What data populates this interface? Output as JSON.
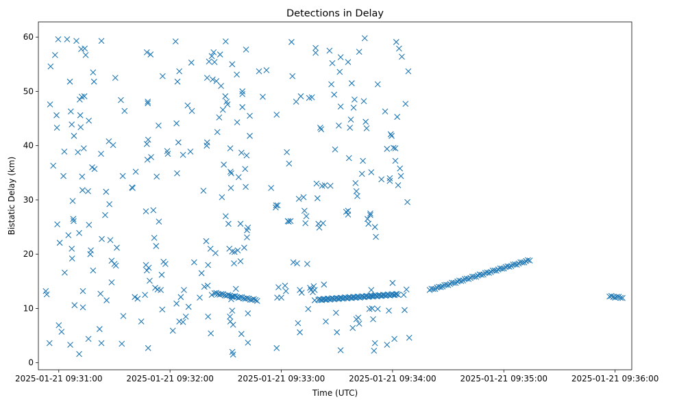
{
  "chart_data": {
    "type": "scatter",
    "title": "Detections in Delay",
    "xlabel": "Time (UTC)",
    "ylabel": "Bistatic Delay (km)",
    "marker": "x",
    "color": "#1f77b4",
    "grid": false,
    "xlim_seconds_after_09_30_00": [
      49,
      369
    ],
    "ylim": [
      -1.3,
      62.8
    ],
    "x_ticks": [
      {
        "value_s": 60,
        "label": "2025-01-21 09:31:00"
      },
      {
        "value_s": 120,
        "label": "2025-01-21 09:32:00"
      },
      {
        "value_s": 180,
        "label": "2025-01-21 09:33:00"
      },
      {
        "value_s": 240,
        "label": "2025-01-21 09:34:00"
      },
      {
        "value_s": 300,
        "label": "2025-01-21 09:35:00"
      },
      {
        "value_s": 360,
        "label": "2025-01-21 09:36:00"
      }
    ],
    "y_ticks": [
      0,
      10,
      20,
      30,
      40,
      50,
      60
    ],
    "track_segments": [
      {
        "x_start": 144,
        "y_start": 12.8,
        "x_end": 167,
        "y_end": 11.5,
        "n": 26
      },
      {
        "x_start": 200,
        "y_start": 11.6,
        "x_end": 243,
        "y_end": 12.6,
        "n": 70
      },
      {
        "x_start": 260,
        "y_start": 13.4,
        "x_end": 314,
        "y_end": 18.9,
        "n": 55
      },
      {
        "x_start": 357,
        "y_start": 12.2,
        "x_end": 364,
        "y_end": 12.0,
        "n": 8
      }
    ],
    "points": [
      [
        53,
        13.2
      ],
      [
        53.5,
        12.6
      ],
      [
        55,
        3.6
      ],
      [
        55.3,
        47.6
      ],
      [
        55.6,
        54.6
      ],
      [
        57,
        36.3
      ],
      [
        58,
        56.7
      ],
      [
        58.8,
        45.6
      ],
      [
        59,
        43.3
      ],
      [
        59.2,
        25.5
      ],
      [
        59.7,
        59.6
      ],
      [
        60,
        6.9
      ],
      [
        60.5,
        22.1
      ],
      [
        61.5,
        5.7
      ],
      [
        62.5,
        34.4
      ],
      [
        63,
        38.9
      ],
      [
        63.2,
        16.6
      ],
      [
        64.5,
        59.6
      ],
      [
        65.2,
        23.5
      ],
      [
        66,
        51.8
      ],
      [
        66.2,
        3.3
      ],
      [
        66.5,
        46.3
      ],
      [
        67,
        43.9
      ],
      [
        67,
        21.0
      ],
      [
        67.2,
        19.2
      ],
      [
        67.5,
        29.8
      ],
      [
        67.8,
        26.5
      ],
      [
        68,
        26.1
      ],
      [
        68.2,
        41.8
      ],
      [
        68.5,
        10.6
      ],
      [
        69.5,
        59.3
      ],
      [
        70.3,
        38.8
      ],
      [
        71,
        23.9
      ],
      [
        71,
        1.6
      ],
      [
        71.3,
        48.5
      ],
      [
        71.6,
        45.6
      ],
      [
        71.8,
        43.4
      ],
      [
        72.1,
        57.8
      ],
      [
        72.4,
        49.0
      ],
      [
        72.6,
        34.3
      ],
      [
        72.8,
        31.8
      ],
      [
        73,
        13.2
      ],
      [
        73,
        10.2
      ],
      [
        73.5,
        39.5
      ],
      [
        73.8,
        49.1
      ],
      [
        74,
        57.9
      ],
      [
        74.5,
        56.7
      ],
      [
        75.8,
        31.6
      ],
      [
        76,
        4.4
      ],
      [
        76.2,
        44.6
      ],
      [
        76.3,
        25.4
      ],
      [
        77,
        20.0
      ],
      [
        77.3,
        20.7
      ],
      [
        78,
        36.0
      ],
      [
        78.5,
        53.5
      ],
      [
        78.5,
        17.0
      ],
      [
        79,
        51.8
      ],
      [
        79.3,
        35.7
      ],
      [
        82,
        6.2
      ],
      [
        82.5,
        12.7
      ],
      [
        82.8,
        38.5
      ],
      [
        83,
        59.3
      ],
      [
        83,
        3.6
      ],
      [
        83.2,
        22.8
      ],
      [
        85,
        27.2
      ],
      [
        85.5,
        31.5
      ],
      [
        85.8,
        11.5
      ],
      [
        87,
        40.8
      ],
      [
        87.3,
        29.2
      ],
      [
        87.8,
        22.6
      ],
      [
        88.5,
        18.8
      ],
      [
        88.5,
        14.8
      ],
      [
        89.3,
        40.1
      ],
      [
        90,
        18.2
      ],
      [
        90.5,
        52.5
      ],
      [
        90.8,
        17.9
      ],
      [
        91.3,
        21.2
      ],
      [
        93.5,
        48.4
      ],
      [
        94,
        3.5
      ],
      [
        94.5,
        34.4
      ],
      [
        94.8,
        8.6
      ],
      [
        95.5,
        46.4
      ],
      [
        99.5,
        32.3
      ],
      [
        99.8,
        32.2
      ],
      [
        101,
        12.1
      ],
      [
        101.5,
        35.2
      ],
      [
        102.5,
        11.8
      ],
      [
        104.5,
        7.6
      ],
      [
        106.5,
        12.5
      ],
      [
        107,
        27.9
      ],
      [
        107,
        18.0
      ],
      [
        107.5,
        57.2
      ],
      [
        107.5,
        40.3
      ],
      [
        107.5,
        17.0
      ],
      [
        107.8,
        37.4
      ],
      [
        108,
        48.1
      ],
      [
        108,
        47.8
      ],
      [
        108.2,
        41.1
      ],
      [
        108.2,
        2.7
      ],
      [
        108.5,
        17.5
      ],
      [
        109,
        15.1
      ],
      [
        109.5,
        56.8
      ],
      [
        109.8,
        37.9
      ],
      [
        111,
        28.1
      ],
      [
        111.5,
        23.0
      ],
      [
        112,
        13.8
      ],
      [
        112.5,
        21.5
      ],
      [
        112.8,
        34.3
      ],
      [
        113.3,
        13.5
      ],
      [
        113.8,
        43.7
      ],
      [
        114,
        26.0
      ],
      [
        115,
        13.4
      ],
      [
        115.5,
        16.2
      ],
      [
        115.8,
        9.8
      ],
      [
        116,
        52.8
      ],
      [
        116.5,
        18.6
      ],
      [
        117.5,
        18.2
      ],
      [
        118.5,
        39.0
      ],
      [
        118.8,
        38.5
      ],
      [
        121.5,
        5.9
      ],
      [
        123,
        59.2
      ],
      [
        123.5,
        44.1
      ],
      [
        123.5,
        10.9
      ],
      [
        123.8,
        34.9
      ],
      [
        124,
        51.8
      ],
      [
        124.5,
        40.6
      ],
      [
        125,
        53.7
      ],
      [
        125,
        7.6
      ],
      [
        125.8,
        12.1
      ],
      [
        127,
        38.3
      ],
      [
        127,
        7.5
      ],
      [
        127.5,
        13.4
      ],
      [
        128.5,
        8.5
      ],
      [
        129.5,
        47.4
      ],
      [
        130,
        10.3
      ],
      [
        131,
        38.9
      ],
      [
        131.5,
        55.3
      ],
      [
        131.8,
        46.4
      ],
      [
        133,
        18.5
      ],
      [
        136,
        12.0
      ],
      [
        137,
        16.5
      ],
      [
        138,
        31.7
      ],
      [
        138.5,
        14.0
      ],
      [
        139.5,
        22.4
      ],
      [
        139.8,
        40.0
      ],
      [
        140,
        52.5
      ],
      [
        140,
        40.6
      ],
      [
        140.3,
        14.2
      ],
      [
        140.5,
        8.5
      ],
      [
        140.5,
        18.0
      ],
      [
        141,
        55.5
      ],
      [
        141.8,
        21.0
      ],
      [
        142,
        5.4
      ],
      [
        142.5,
        12.5
      ],
      [
        142.5,
        56.5
      ],
      [
        143,
        52.2
      ],
      [
        143.5,
        57.2
      ],
      [
        144,
        55.4
      ],
      [
        144.5,
        20.2
      ],
      [
        145,
        51.9
      ],
      [
        145.5,
        42.5
      ],
      [
        146.5,
        45.2
      ],
      [
        147,
        56.8
      ],
      [
        147.5,
        51.0
      ],
      [
        148,
        30.5
      ],
      [
        148.5,
        46.6
      ],
      [
        149,
        36.5
      ],
      [
        149.8,
        49.1
      ],
      [
        150,
        59.2
      ],
      [
        150,
        27.0
      ],
      [
        150.5,
        48.1
      ],
      [
        151,
        47.6
      ],
      [
        151.5,
        25.6
      ],
      [
        152,
        21.0
      ],
      [
        152.3,
        8.5
      ],
      [
        152.5,
        39.5
      ],
      [
        152.5,
        7.6
      ],
      [
        152.6,
        35.2
      ],
      [
        152.8,
        32.2
      ],
      [
        153,
        11.7
      ],
      [
        153,
        34.9
      ],
      [
        153.5,
        55.0
      ],
      [
        153.5,
        20.5
      ],
      [
        153.5,
        12.2
      ],
      [
        153.5,
        9.6
      ],
      [
        153.6,
        2.0
      ],
      [
        154,
        7.0
      ],
      [
        154,
        1.5
      ],
      [
        154.5,
        18.3
      ],
      [
        154.8,
        20.4
      ],
      [
        155.5,
        13.6
      ],
      [
        156,
        53.1
      ],
      [
        156.2,
        44.3
      ],
      [
        156.5,
        20.7
      ],
      [
        157,
        34.2
      ],
      [
        158,
        25.6
      ],
      [
        158,
        18.7
      ],
      [
        158.5,
        38.7
      ],
      [
        158.5,
        5.3
      ],
      [
        159,
        50.0
      ],
      [
        159,
        49.5
      ],
      [
        159,
        47.1
      ],
      [
        160,
        21.2
      ],
      [
        160.5,
        35.7
      ],
      [
        160.8,
        32.4
      ],
      [
        161,
        57.7
      ],
      [
        161.3,
        38.2
      ],
      [
        161.5,
        24.4
      ],
      [
        161.5,
        23.1
      ],
      [
        162,
        24.9
      ],
      [
        162,
        9.1
      ],
      [
        162,
        3.7
      ],
      [
        163,
        41.8
      ],
      [
        163,
        45.5
      ],
      [
        168,
        53.7
      ],
      [
        170,
        49.0
      ],
      [
        172,
        53.9
      ],
      [
        174.5,
        32.2
      ],
      [
        177,
        28.6
      ],
      [
        177.2,
        29.0
      ],
      [
        177.5,
        45.7
      ],
      [
        177.5,
        2.7
      ],
      [
        177.8,
        12.0
      ],
      [
        178,
        29.0
      ],
      [
        178.5,
        13.9
      ],
      [
        180,
        12.0
      ],
      [
        182,
        14.2
      ],
      [
        182.5,
        13.2
      ],
      [
        183,
        38.8
      ],
      [
        183.5,
        26.1
      ],
      [
        184,
        26.0
      ],
      [
        184.2,
        36.7
      ],
      [
        185,
        26.1
      ],
      [
        185.5,
        59.1
      ],
      [
        186,
        52.8
      ],
      [
        186.5,
        18.5
      ],
      [
        188,
        48.1
      ],
      [
        188.5,
        18.3
      ],
      [
        189,
        7.3
      ],
      [
        189.5,
        30.2
      ],
      [
        190,
        13.4
      ],
      [
        190,
        5.6
      ],
      [
        190.5,
        49.1
      ],
      [
        191,
        12.9
      ],
      [
        192,
        30.5
      ],
      [
        192.5,
        28.0
      ],
      [
        193,
        25.7
      ],
      [
        193.5,
        27.0
      ],
      [
        194,
        18.2
      ],
      [
        194.5,
        9.9
      ],
      [
        195,
        48.8
      ],
      [
        195.5,
        13.8
      ],
      [
        196,
        13.4
      ],
      [
        196.5,
        48.9
      ],
      [
        197,
        13.0
      ],
      [
        197.5,
        14.1
      ],
      [
        198,
        13.4
      ],
      [
        198,
        11.5
      ],
      [
        198.5,
        58.0
      ],
      [
        198.5,
        57.1
      ],
      [
        199,
        33.0
      ],
      [
        199.5,
        30.3
      ],
      [
        200,
        25.6
      ],
      [
        200.5,
        24.9
      ],
      [
        201,
        43.3
      ],
      [
        201.5,
        43.0
      ],
      [
        202,
        32.6
      ],
      [
        202.5,
        25.7
      ],
      [
        203,
        14.4
      ],
      [
        203.5,
        32.7
      ],
      [
        204,
        7.6
      ],
      [
        206,
        57.5
      ],
      [
        206.5,
        32.6
      ],
      [
        207,
        51.3
      ],
      [
        207.5,
        55.2
      ],
      [
        208.5,
        49.4
      ],
      [
        209,
        39.3
      ],
      [
        209.5,
        9.2
      ],
      [
        210,
        5.6
      ],
      [
        211,
        43.7
      ],
      [
        211.5,
        53.6
      ],
      [
        212,
        47.2
      ],
      [
        212,
        56.3
      ],
      [
        212,
        2.3
      ],
      [
        215,
        27.8
      ],
      [
        216,
        27.3
      ],
      [
        216,
        28.0
      ],
      [
        216,
        55.4
      ],
      [
        216.5,
        37.7
      ],
      [
        217,
        43.3
      ],
      [
        217.5,
        44.8
      ],
      [
        218,
        51.5
      ],
      [
        218.5,
        6.4
      ],
      [
        219,
        47.0
      ],
      [
        219.5,
        48.5
      ],
      [
        220,
        33.1
      ],
      [
        220.5,
        31.6
      ],
      [
        220.5,
        8.0
      ],
      [
        221,
        30.7
      ],
      [
        221.5,
        8.3
      ],
      [
        222,
        57.3
      ],
      [
        222,
        7.2
      ],
      [
        223.5,
        34.8
      ],
      [
        224,
        37.2
      ],
      [
        224.5,
        48.2
      ],
      [
        225,
        59.8
      ],
      [
        225.5,
        44.4
      ],
      [
        226,
        43.2
      ],
      [
        226.5,
        26.5
      ],
      [
        227,
        25.6
      ],
      [
        227.5,
        9.9
      ],
      [
        228,
        27.2
      ],
      [
        228,
        27.5
      ],
      [
        228.5,
        35.1
      ],
      [
        228.5,
        13.4
      ],
      [
        229,
        12.3
      ],
      [
        229,
        10.0
      ],
      [
        229.5,
        8.0
      ],
      [
        230,
        2.2
      ],
      [
        230.5,
        3.6
      ],
      [
        230.5,
        25.0
      ],
      [
        231,
        23.2
      ],
      [
        232,
        51.3
      ],
      [
        232,
        9.9
      ],
      [
        234,
        33.8
      ],
      [
        236,
        46.3
      ],
      [
        237,
        39.4
      ],
      [
        237,
        3.3
      ],
      [
        238,
        9.6
      ],
      [
        238.5,
        34.0
      ],
      [
        238.5,
        33.5
      ],
      [
        239,
        42.1
      ],
      [
        239.5,
        41.8
      ],
      [
        240,
        14.7
      ],
      [
        240.5,
        39.6
      ],
      [
        241,
        4.4
      ],
      [
        241.5,
        39.5
      ],
      [
        241.5,
        37.2
      ],
      [
        242,
        59.1
      ],
      [
        242.5,
        45.3
      ],
      [
        243,
        32.7
      ],
      [
        243.5,
        57.9
      ],
      [
        244,
        35.8
      ],
      [
        244.5,
        34.4
      ],
      [
        245,
        56.4
      ],
      [
        246,
        12.5
      ],
      [
        246.5,
        9.7
      ],
      [
        247,
        47.7
      ],
      [
        247.5,
        13.5
      ],
      [
        248,
        29.6
      ],
      [
        248.5,
        53.7
      ],
      [
        249,
        4.6
      ]
    ]
  }
}
